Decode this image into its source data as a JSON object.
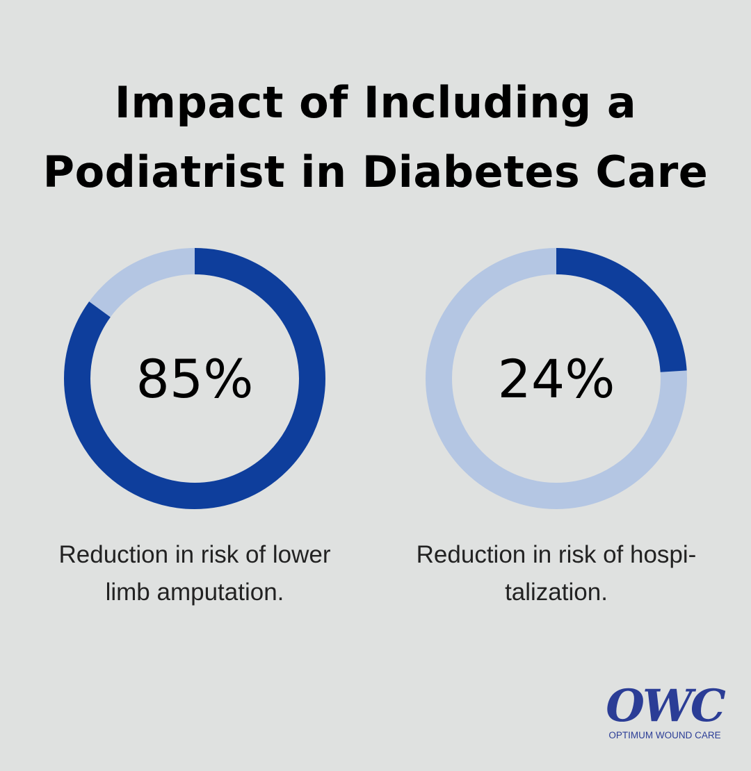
{
  "title_lines": [
    "Impact of Including a",
    "Podiatrist in Diabetes Care"
  ],
  "colors": {
    "background": "#dfe1e0",
    "filled": "#0e3e9c",
    "remaining": "#b4c6e3"
  },
  "chart_data": [
    {
      "type": "pie",
      "variant": "donut",
      "value": 85,
      "max": 100,
      "label": "85%",
      "caption": "Reduction in risk of lower limb amputation."
    },
    {
      "type": "pie",
      "variant": "donut",
      "value": 24,
      "max": 100,
      "label": "24%",
      "caption_lines": [
        "Reduction in risk of hospi-",
        "talization."
      ]
    }
  ],
  "captions": {
    "first_lines": [
      "Reduction in risk of lower",
      "limb amputation."
    ],
    "second_lines": [
      "Reduction in risk of hospi-",
      "talization."
    ]
  },
  "logo": {
    "mark": "OWC",
    "name": "OPTIMUM WOUND CARE"
  }
}
